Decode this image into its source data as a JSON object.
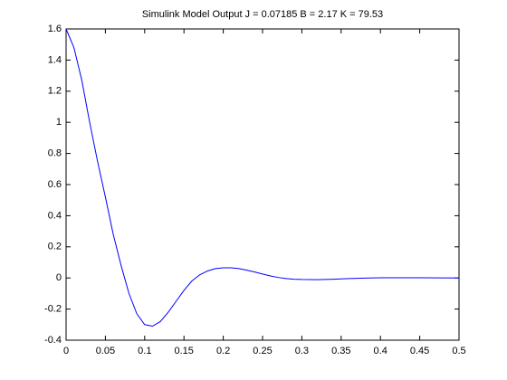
{
  "chart_data": {
    "type": "line",
    "title": "Simulink Model Output J = 0.07185 B = 2.17 K = 79.53",
    "x": [
      0,
      0.01,
      0.02,
      0.03,
      0.04,
      0.05,
      0.06,
      0.07,
      0.08,
      0.09,
      0.1,
      0.11,
      0.12,
      0.13,
      0.14,
      0.15,
      0.16,
      0.17,
      0.18,
      0.19,
      0.2,
      0.21,
      0.22,
      0.23,
      0.24,
      0.25,
      0.26,
      0.27,
      0.28,
      0.29,
      0.3,
      0.32,
      0.34,
      0.36,
      0.38,
      0.4,
      0.45,
      0.5
    ],
    "values": [
      1.6,
      1.48,
      1.27,
      1.0,
      0.75,
      0.52,
      0.28,
      0.08,
      -0.1,
      -0.23,
      -0.3,
      -0.31,
      -0.28,
      -0.22,
      -0.15,
      -0.08,
      -0.02,
      0.02,
      0.045,
      0.06,
      0.065,
      0.065,
      0.06,
      0.05,
      0.038,
      0.025,
      0.013,
      0.003,
      -0.004,
      -0.008,
      -0.01,
      -0.011,
      -0.008,
      -0.004,
      -0.001,
      0.001,
      0.001,
      0
    ],
    "color": "#0000ff",
    "xlim": [
      0,
      0.5
    ],
    "xticks": [
      0,
      0.05,
      0.1,
      0.15,
      0.2,
      0.25,
      0.3,
      0.35,
      0.4,
      0.45,
      0.5
    ],
    "ylim": [
      -0.4,
      1.6
    ],
    "yticks": [
      -0.4,
      -0.2,
      0,
      0.2,
      0.4,
      0.6,
      0.8,
      1,
      1.2,
      1.4,
      1.6
    ],
    "grid": false
  }
}
